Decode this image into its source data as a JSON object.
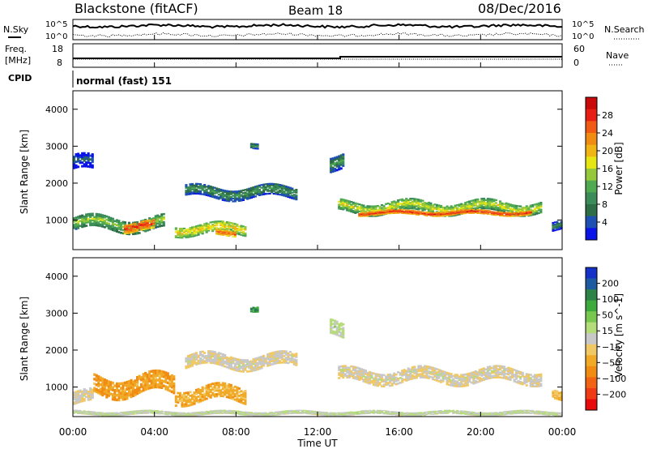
{
  "header": {
    "station": "Blackstone (fitACF)",
    "beam": "Beam 18",
    "date": "08/Dec/2016"
  },
  "top_panel": {
    "left_label": "N.Sky",
    "right_label": "N.Search",
    "left_ticks": [
      "10^5",
      "10^0"
    ],
    "right_ticks": [
      "10^5",
      "10^0"
    ]
  },
  "freq_panel": {
    "left_label_1": "Freq.",
    "left_label_2": "[MHz]",
    "right_label": "Nave",
    "left_ticks": [
      "18",
      "8"
    ],
    "right_ticks": [
      "60",
      "0"
    ]
  },
  "cpid_panel": {
    "label": "CPID",
    "text": "normal (fast) 151"
  },
  "colors": {
    "power": [
      "#0a14e6",
      "#1e50b4",
      "#2d6e46",
      "#3c8c5a",
      "#50aa50",
      "#96c83c",
      "#e6e614",
      "#f0b414",
      "#f08c14",
      "#f05a14",
      "#e61e14",
      "#c80a0a"
    ],
    "velocity": [
      "#e60a0a",
      "#f03c14",
      "#f06414",
      "#f08c14",
      "#f0aa28",
      "#f0c864",
      "#c8c8c8",
      "#b4dc78",
      "#78c850",
      "#3caa3c",
      "#2d8246",
      "#1e5aa0",
      "#1432c8"
    ]
  },
  "chart_data": [
    {
      "type": "heatmap",
      "name": "power",
      "ylabel": "Slant Range [km]",
      "yticks": [
        1000,
        2000,
        3000,
        4000
      ],
      "ylim": [
        200,
        4500
      ],
      "xlim": [
        0,
        24
      ],
      "colorbar_label": "Power [dB]",
      "colorbar_ticks": [
        4,
        8,
        12,
        16,
        20,
        24,
        28
      ],
      "colorbar_range": [
        0,
        30
      ],
      "bands": [
        {
          "x": [
            0,
            4.5
          ],
          "r_center": 900,
          "r_width": 350,
          "value": 14
        },
        {
          "x": [
            2.5,
            4.0
          ],
          "r_center": 820,
          "r_width": 250,
          "value": 26
        },
        {
          "x": [
            5.0,
            8.5
          ],
          "r_center": 750,
          "r_width": 280,
          "value": 18
        },
        {
          "x": [
            7.0,
            8.0
          ],
          "r_center": 650,
          "r_width": 150,
          "value": 24
        },
        {
          "x": [
            5.5,
            11.0
          ],
          "r_center": 1750,
          "r_width": 300,
          "value": 10
        },
        {
          "x": [
            13.0,
            23.0
          ],
          "r_center": 1350,
          "r_width": 300,
          "value": 16
        },
        {
          "x": [
            14.0,
            22.5
          ],
          "r_center": 1200,
          "r_width": 120,
          "value": 26
        },
        {
          "x": [
            0,
            1.0
          ],
          "r_center": 2500,
          "r_width": 400,
          "value": 6
        },
        {
          "x": [
            8.7,
            9.1
          ],
          "r_center": 3050,
          "r_width": 150,
          "value": 10
        },
        {
          "x": [
            12.6,
            13.3
          ],
          "r_center": 2600,
          "r_width": 400,
          "value": 10
        },
        {
          "x": [
            23.5,
            24
          ],
          "r_center": 850,
          "r_width": 250,
          "value": 8
        }
      ]
    },
    {
      "type": "heatmap",
      "name": "velocity",
      "ylabel": "Slant Range [km]",
      "xlabel": "Time UT",
      "xticks": [
        "00:00",
        "04:00",
        "08:00",
        "12:00",
        "16:00",
        "20:00",
        "00:00"
      ],
      "yticks": [
        1000,
        2000,
        3000,
        4000
      ],
      "ylim": [
        200,
        4500
      ],
      "xlim": [
        0,
        24
      ],
      "colorbar_label": "Velocity [m s^-1]",
      "colorbar_ticks": [
        "200",
        "100",
        "50",
        "15",
        "−15",
        "−50",
        "−100",
        "−200"
      ],
      "colorbar_range": [
        -250,
        250
      ],
      "bands": [
        {
          "x": [
            0,
            1.0
          ],
          "r_center": 700,
          "r_width": 350,
          "value": 0
        },
        {
          "x": [
            1.0,
            5.0
          ],
          "r_center": 1050,
          "r_width": 500,
          "value": -75
        },
        {
          "x": [
            5.0,
            8.5
          ],
          "r_center": 800,
          "r_width": 400,
          "value": -60
        },
        {
          "x": [
            5.5,
            11.0
          ],
          "r_center": 1700,
          "r_width": 350,
          "value": 0
        },
        {
          "x": [
            13.0,
            23.0
          ],
          "r_center": 1300,
          "r_width": 350,
          "value": 0
        },
        {
          "x": [
            8.7,
            9.1
          ],
          "r_center": 3050,
          "r_width": 150,
          "value": 150
        },
        {
          "x": [
            12.6,
            13.3
          ],
          "r_center": 2550,
          "r_width": 400,
          "value": 40
        },
        {
          "x": [
            23.5,
            24
          ],
          "r_center": 800,
          "r_width": 250,
          "value": -50
        },
        {
          "x": [
            0,
            24
          ],
          "r_center": 300,
          "r_width": 100,
          "value": 30
        }
      ]
    }
  ]
}
